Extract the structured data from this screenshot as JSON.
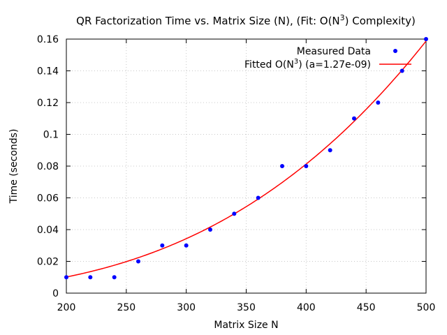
{
  "chart_data": {
    "type": "scatter",
    "title_main": "QR Factorization Time vs. Matrix Size (N), (Fit: O(N",
    "title_sup": "3",
    "title_end": ") Complexity)",
    "xlabel": "Matrix Size N",
    "ylabel": "Time (seconds)",
    "xlim": [
      200,
      500
    ],
    "ylim": [
      0,
      0.16
    ],
    "xticks": [
      200,
      250,
      300,
      350,
      400,
      450,
      500
    ],
    "yticks": [
      0,
      0.02,
      0.04,
      0.06,
      0.08,
      0.1,
      0.12,
      0.14,
      0.16
    ],
    "xtick_labels": [
      "200",
      "250",
      "300",
      "350",
      "400",
      "450",
      "500"
    ],
    "ytick_labels": [
      "0",
      "0.02",
      "0.04",
      "0.06",
      "0.08",
      "0.1",
      "0.12",
      "0.14",
      "0.16"
    ],
    "grid": true,
    "legend_position": "top-right",
    "series": [
      {
        "name": "Measured Data",
        "kind": "points",
        "color": "#0000ff",
        "x": [
          200,
          220,
          240,
          260,
          280,
          300,
          320,
          340,
          360,
          380,
          400,
          420,
          440,
          460,
          480,
          500
        ],
        "y": [
          0.01,
          0.01,
          0.01,
          0.02,
          0.03,
          0.03,
          0.04,
          0.05,
          0.06,
          0.08,
          0.08,
          0.09,
          0.11,
          0.12,
          0.14,
          0.16
        ]
      },
      {
        "name_main": "Fitted O(N",
        "name_sup": "3",
        "name_end": ") (a=1.27e-09)",
        "kind": "line",
        "color": "#ff0000",
        "coefficient": 1.27e-09
      }
    ]
  }
}
